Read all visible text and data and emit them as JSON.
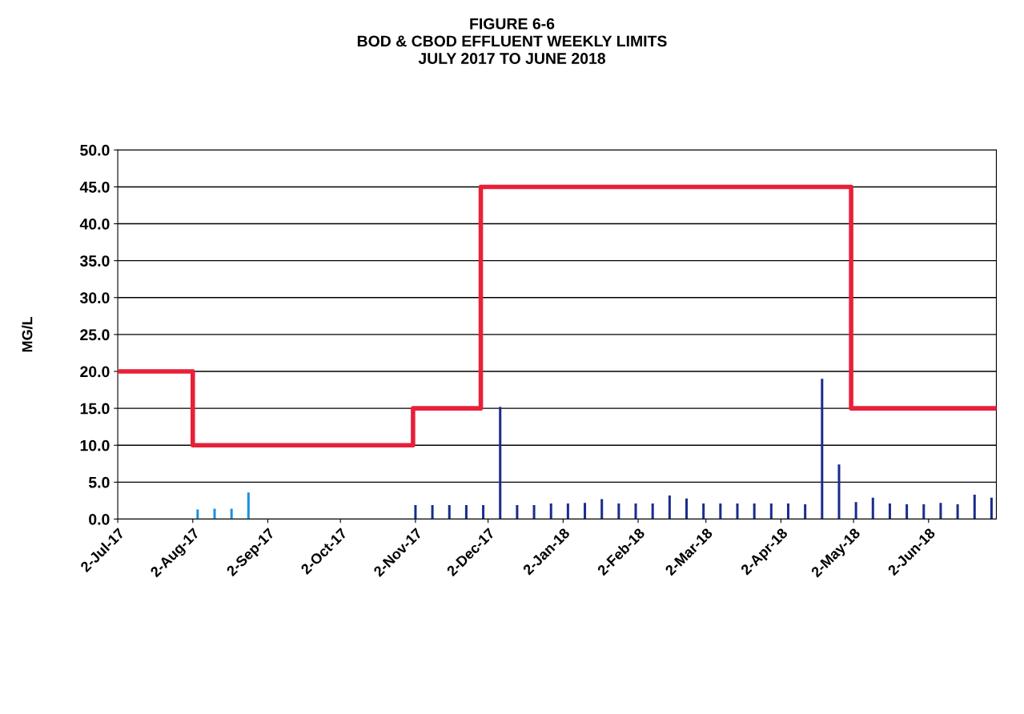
{
  "chart_data": {
    "type": "bar",
    "title": "FIGURE 6-6\nBOD & CBOD EFFLUENT WEEKLY LIMITS\nJULY 2017 TO JUNE 2018",
    "ylabel": "MG/L",
    "series": [
      {
        "color": "#1f8fdc",
        "x": [
          "2017-08-04",
          "2017-08-11",
          "2017-08-18",
          "2017-08-25"
        ],
        "values": [
          1.3,
          1.4,
          1.4,
          3.6
        ]
      },
      {
        "color": "#1c2c8c",
        "x": [
          "2017-11-02",
          "2017-11-09",
          "2017-11-16",
          "2017-11-23",
          "2017-11-30",
          "2017-12-07",
          "2017-12-14",
          "2017-12-21",
          "2017-12-28",
          "2018-01-04",
          "2018-01-11",
          "2018-01-18",
          "2018-01-25",
          "2018-02-01",
          "2018-02-08",
          "2018-02-15",
          "2018-02-22",
          "2018-03-01",
          "2018-03-08",
          "2018-03-15",
          "2018-03-22",
          "2018-03-29",
          "2018-04-05",
          "2018-04-12",
          "2018-04-19",
          "2018-04-26",
          "2018-05-03",
          "2018-05-10",
          "2018-05-17",
          "2018-05-24",
          "2018-05-31",
          "2018-06-07",
          "2018-06-14",
          "2018-06-21",
          "2018-06-28"
        ],
        "values": [
          1.9,
          1.9,
          1.9,
          1.9,
          1.9,
          15.2,
          1.9,
          1.9,
          2.1,
          2.1,
          2.2,
          2.7,
          2.1,
          2.1,
          2.1,
          3.2,
          2.8,
          2.1,
          2.1,
          2.1,
          2.1,
          2.1,
          2.1,
          2.0,
          19.0,
          7.4,
          2.3,
          2.9,
          2.1,
          2.0,
          2.0,
          2.2,
          2.0,
          3.3,
          2.9
        ]
      },
      {
        "type": "step",
        "color": "#e8203a",
        "x": [
          "2017-07-02",
          "2017-08-02",
          "2017-11-01",
          "2017-11-29",
          "2018-05-01",
          "2018-06-30"
        ],
        "values": [
          20,
          10,
          15,
          45,
          15,
          15
        ]
      }
    ],
    "xlim": [
      "2017-07-02",
      "2018-06-30"
    ],
    "xticks": [
      {
        "value": "2017-07-02",
        "label": "2-Jul-17"
      },
      {
        "value": "2017-08-02",
        "label": "2-Aug-17"
      },
      {
        "value": "2017-09-02",
        "label": "2-Sep-17"
      },
      {
        "value": "2017-10-02",
        "label": "2-Oct-17"
      },
      {
        "value": "2017-11-02",
        "label": "2-Nov-17"
      },
      {
        "value": "2017-12-02",
        "label": "2-Dec-17"
      },
      {
        "value": "2018-01-02",
        "label": "2-Jan-18"
      },
      {
        "value": "2018-02-02",
        "label": "2-Feb-18"
      },
      {
        "value": "2018-03-02",
        "label": "2-Mar-18"
      },
      {
        "value": "2018-04-02",
        "label": "2-Apr-18"
      },
      {
        "value": "2018-05-02",
        "label": "2-May-18"
      },
      {
        "value": "2018-06-02",
        "label": "2-Jun-18"
      }
    ],
    "ylim": [
      0,
      50
    ],
    "yticks": [
      {
        "value": 0,
        "label": "0.0"
      },
      {
        "value": 5,
        "label": "5.0"
      },
      {
        "value": 10,
        "label": "10.0"
      },
      {
        "value": 15,
        "label": "15.0"
      },
      {
        "value": 20,
        "label": "20.0"
      },
      {
        "value": 25,
        "label": "25.0"
      },
      {
        "value": 30,
        "label": "30.0"
      },
      {
        "value": 35,
        "label": "35.0"
      },
      {
        "value": 40,
        "label": "40.0"
      },
      {
        "value": 45,
        "label": "45.0"
      },
      {
        "value": 50,
        "label": "50.0"
      }
    ],
    "grid": "y"
  }
}
